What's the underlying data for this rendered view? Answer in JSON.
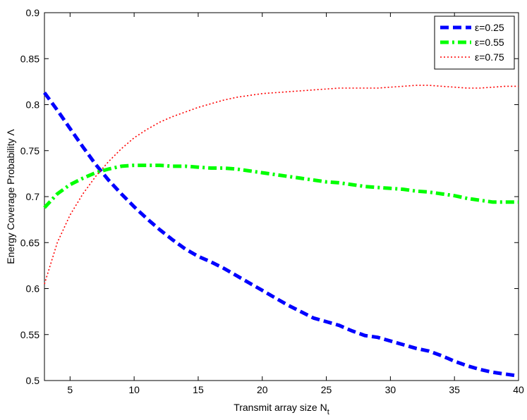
{
  "chart_data": {
    "type": "line",
    "title": "",
    "xlabel": "Transmit array size N",
    "xlabel_subscript": "t",
    "ylabel": "Energy Coverage Probability Λ",
    "xlim": [
      3,
      40
    ],
    "ylim": [
      0.5,
      0.9
    ],
    "xticks": [
      5,
      10,
      15,
      20,
      25,
      30,
      35,
      40
    ],
    "yticks": [
      0.5,
      0.55,
      0.6,
      0.65,
      0.7,
      0.75,
      0.8,
      0.85,
      0.9
    ],
    "grid": false,
    "legend_position": "top-right",
    "series": [
      {
        "name": "ε=0.25",
        "color": "#0000ff",
        "style": "dashed",
        "x": [
          3,
          4,
          5,
          6,
          7,
          8,
          9,
          10,
          11,
          12,
          13,
          14,
          15,
          16,
          17,
          18,
          19,
          20,
          21,
          22,
          23,
          24,
          25,
          26,
          27,
          28,
          29,
          30,
          31,
          32,
          33,
          34,
          35,
          36,
          37,
          38,
          39,
          40
        ],
        "y": [
          0.813,
          0.794,
          0.774,
          0.754,
          0.735,
          0.718,
          0.703,
          0.689,
          0.676,
          0.664,
          0.653,
          0.643,
          0.635,
          0.629,
          0.622,
          0.614,
          0.606,
          0.598,
          0.59,
          0.582,
          0.575,
          0.568,
          0.564,
          0.56,
          0.554,
          0.549,
          0.547,
          0.543,
          0.539,
          0.535,
          0.532,
          0.527,
          0.521,
          0.516,
          0.512,
          0.509,
          0.507,
          0.505
        ]
      },
      {
        "name": "ε=0.55",
        "color": "#00ff00",
        "style": "dash-dot",
        "x": [
          3,
          4,
          5,
          6,
          7,
          8,
          9,
          10,
          11,
          12,
          13,
          14,
          15,
          16,
          17,
          18,
          19,
          20,
          21,
          22,
          23,
          24,
          25,
          26,
          27,
          28,
          29,
          30,
          31,
          32,
          33,
          34,
          35,
          36,
          37,
          38,
          39,
          40
        ],
        "y": [
          0.688,
          0.703,
          0.713,
          0.72,
          0.726,
          0.73,
          0.733,
          0.734,
          0.734,
          0.734,
          0.733,
          0.733,
          0.732,
          0.731,
          0.731,
          0.73,
          0.728,
          0.726,
          0.724,
          0.722,
          0.72,
          0.718,
          0.716,
          0.715,
          0.713,
          0.711,
          0.71,
          0.709,
          0.708,
          0.706,
          0.705,
          0.703,
          0.701,
          0.698,
          0.696,
          0.694,
          0.694,
          0.694
        ]
      },
      {
        "name": "ε=0.75",
        "color": "#ff0000",
        "style": "dotted",
        "x": [
          3,
          4,
          5,
          6,
          7,
          8,
          9,
          10,
          11,
          12,
          13,
          14,
          15,
          16,
          17,
          18,
          19,
          20,
          21,
          22,
          23,
          24,
          25,
          26,
          27,
          28,
          29,
          30,
          31,
          32,
          33,
          34,
          35,
          36,
          37,
          38,
          39,
          40
        ],
        "y": [
          0.605,
          0.65,
          0.68,
          0.703,
          0.722,
          0.738,
          0.752,
          0.764,
          0.773,
          0.781,
          0.787,
          0.792,
          0.797,
          0.801,
          0.805,
          0.808,
          0.81,
          0.812,
          0.813,
          0.814,
          0.815,
          0.816,
          0.817,
          0.818,
          0.818,
          0.818,
          0.818,
          0.819,
          0.82,
          0.821,
          0.821,
          0.82,
          0.819,
          0.818,
          0.818,
          0.819,
          0.82,
          0.82
        ]
      }
    ]
  }
}
